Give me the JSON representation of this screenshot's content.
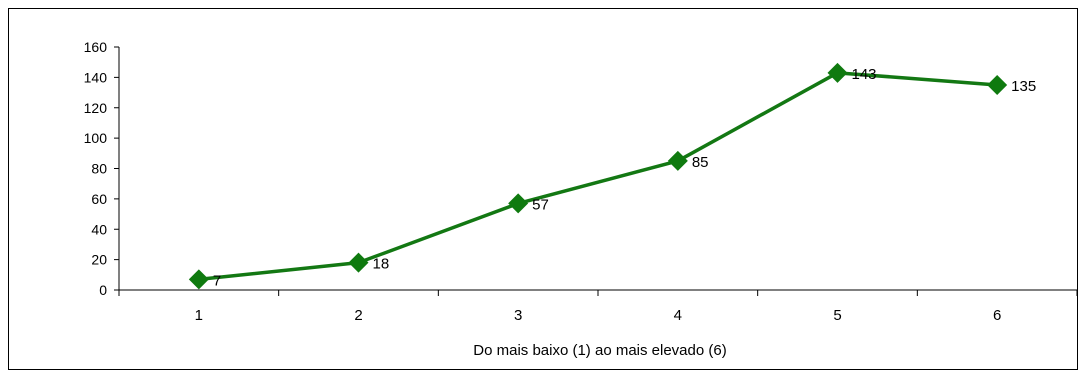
{
  "chart_data": {
    "type": "line",
    "title": "",
    "xlabel": "Do mais baixo (1) ao mais elevado (6)",
    "ylabel": "",
    "categories": [
      "1",
      "2",
      "3",
      "4",
      "5",
      "6"
    ],
    "series": [
      {
        "values": [
          7,
          18,
          57,
          85,
          143,
          135
        ]
      }
    ],
    "data_labels": [
      "7",
      "18",
      "57",
      "85",
      "143",
      "135"
    ],
    "ylim": [
      0,
      160
    ],
    "yticks": [
      "0",
      "20",
      "40",
      "60",
      "80",
      "100",
      "120",
      "140",
      "160"
    ],
    "grid": false,
    "legend": "none",
    "marker": "diamond",
    "colors": {
      "line": "#137813",
      "marker": "#0f7a0f",
      "axis": "#000000"
    }
  }
}
